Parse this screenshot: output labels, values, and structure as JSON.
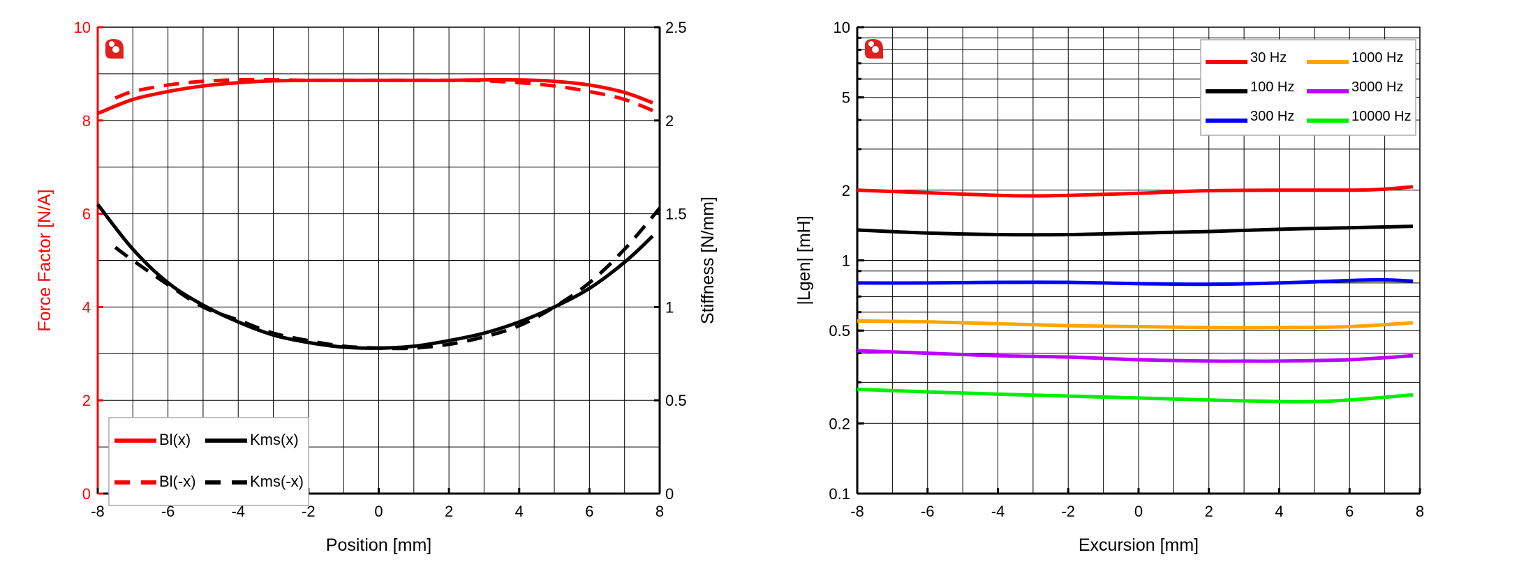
{
  "chart_data": [
    {
      "type": "line",
      "xlabel": "Position [mm]",
      "ylabel": "Force Factor [N/A]",
      "y2label": "Stiffness [N/mm]",
      "xlim": [
        -8,
        8
      ],
      "ylim": [
        0,
        10
      ],
      "y2lim": [
        0,
        2.5
      ],
      "xticks": [
        "-8",
        "-6",
        "-4",
        "-2",
        "0",
        "2",
        "4",
        "6",
        "8"
      ],
      "yticks": [
        "0",
        "2",
        "4",
        "6",
        "8",
        "10"
      ],
      "y2ticks": [
        "0",
        "0.5",
        "1",
        "1.5",
        "2",
        "2.5"
      ],
      "grid": true,
      "legend_placement": "bottom-left",
      "colors": {
        "left_axis": "#ff0000",
        "right_axis": "#000000"
      },
      "series": [
        {
          "name": "Bl(x)",
          "axis": "left",
          "color": "#ff0000",
          "dash": false,
          "x": [
            -8,
            -7,
            -6,
            -5,
            -4,
            -3,
            -2,
            -1,
            0,
            1,
            2,
            3,
            4,
            5,
            6,
            7,
            7.8
          ],
          "y": [
            8.15,
            8.45,
            8.62,
            8.74,
            8.81,
            8.85,
            8.86,
            8.86,
            8.86,
            8.86,
            8.86,
            8.87,
            8.87,
            8.84,
            8.76,
            8.6,
            8.38
          ]
        },
        {
          "name": "Bl(-x)",
          "axis": "left",
          "color": "#ff0000",
          "dash": true,
          "x": [
            -7.5,
            -7,
            -6,
            -5,
            -4,
            -3,
            -2,
            -1,
            0,
            1,
            2,
            3,
            4,
            5,
            6,
            7,
            8
          ],
          "y": [
            8.48,
            8.62,
            8.76,
            8.84,
            8.87,
            8.87,
            8.86,
            8.86,
            8.86,
            8.86,
            8.86,
            8.85,
            8.81,
            8.74,
            8.62,
            8.45,
            8.15
          ]
        },
        {
          "name": "Kms(x)",
          "axis": "right",
          "color": "#000000",
          "dash": false,
          "x": [
            -8,
            -7,
            -6,
            -5,
            -4,
            -3,
            -2,
            -1,
            0,
            1,
            2,
            3,
            4,
            5,
            6,
            7,
            7.8
          ],
          "y": [
            1.55,
            1.31,
            1.13,
            1.01,
            0.92,
            0.85,
            0.81,
            0.785,
            0.78,
            0.79,
            0.82,
            0.86,
            0.92,
            1.0,
            1.1,
            1.24,
            1.38
          ]
        },
        {
          "name": "Kms(-x)",
          "axis": "right",
          "color": "#000000",
          "dash": true,
          "x": [
            -7.5,
            -7,
            -6,
            -5,
            -4,
            -3,
            -2,
            -1,
            0,
            1,
            2,
            3,
            4,
            5,
            6,
            7,
            8
          ],
          "y": [
            1.32,
            1.25,
            1.12,
            1.0,
            0.93,
            0.86,
            0.82,
            0.79,
            0.78,
            0.78,
            0.8,
            0.84,
            0.9,
            1.0,
            1.13,
            1.31,
            1.53
          ]
        }
      ]
    },
    {
      "type": "line",
      "xlabel": "Excursion [mm]",
      "ylabel": "|Lgen| [mH]",
      "xlim": [
        -8,
        8
      ],
      "ylim": [
        0.1,
        10
      ],
      "yscale": "log",
      "xticks": [
        "-8",
        "-6",
        "-4",
        "-2",
        "0",
        "2",
        "4",
        "6",
        "8"
      ],
      "yticks": [
        "0.1",
        "0.2",
        "0.5",
        "1",
        "2",
        "5",
        "10"
      ],
      "grid": true,
      "legend_placement": "top-right",
      "series": [
        {
          "name": "30 Hz",
          "color": "#ff0000",
          "x": [
            -8,
            -6,
            -4,
            -3,
            -2,
            0,
            2,
            4,
            6,
            7,
            7.8
          ],
          "y": [
            2.0,
            1.95,
            1.9,
            1.89,
            1.9,
            1.94,
            1.99,
            2.0,
            2.0,
            2.02,
            2.07
          ]
        },
        {
          "name": "100 Hz",
          "color": "#000000",
          "x": [
            -8,
            -6,
            -4,
            -2,
            0,
            2,
            4,
            6,
            7.8
          ],
          "y": [
            1.35,
            1.31,
            1.29,
            1.29,
            1.31,
            1.33,
            1.36,
            1.38,
            1.4
          ]
        },
        {
          "name": "300 Hz",
          "color": "#0000ff",
          "x": [
            -8,
            -6,
            -4,
            -2,
            0,
            2,
            4,
            6,
            7,
            7.8
          ],
          "y": [
            0.8,
            0.8,
            0.805,
            0.805,
            0.795,
            0.79,
            0.8,
            0.82,
            0.825,
            0.815
          ]
        },
        {
          "name": "1000 Hz",
          "color": "#ffa500",
          "x": [
            -8,
            -6,
            -4,
            -2,
            0,
            2,
            4,
            6,
            7.8
          ],
          "y": [
            0.55,
            0.545,
            0.535,
            0.525,
            0.52,
            0.515,
            0.515,
            0.52,
            0.54
          ]
        },
        {
          "name": "3000 Hz",
          "color": "#bb00ff",
          "x": [
            -8,
            -6,
            -4,
            -2,
            0,
            2,
            3,
            4,
            6,
            7.8
          ],
          "y": [
            0.41,
            0.4,
            0.39,
            0.385,
            0.375,
            0.37,
            0.37,
            0.37,
            0.375,
            0.39
          ]
        },
        {
          "name": "10000 Hz",
          "color": "#00ee00",
          "x": [
            -8,
            -6,
            -4,
            -2,
            0,
            2,
            4,
            5,
            6,
            7.8
          ],
          "y": [
            0.28,
            0.273,
            0.267,
            0.262,
            0.257,
            0.252,
            0.248,
            0.248,
            0.252,
            0.265
          ]
        }
      ]
    }
  ]
}
